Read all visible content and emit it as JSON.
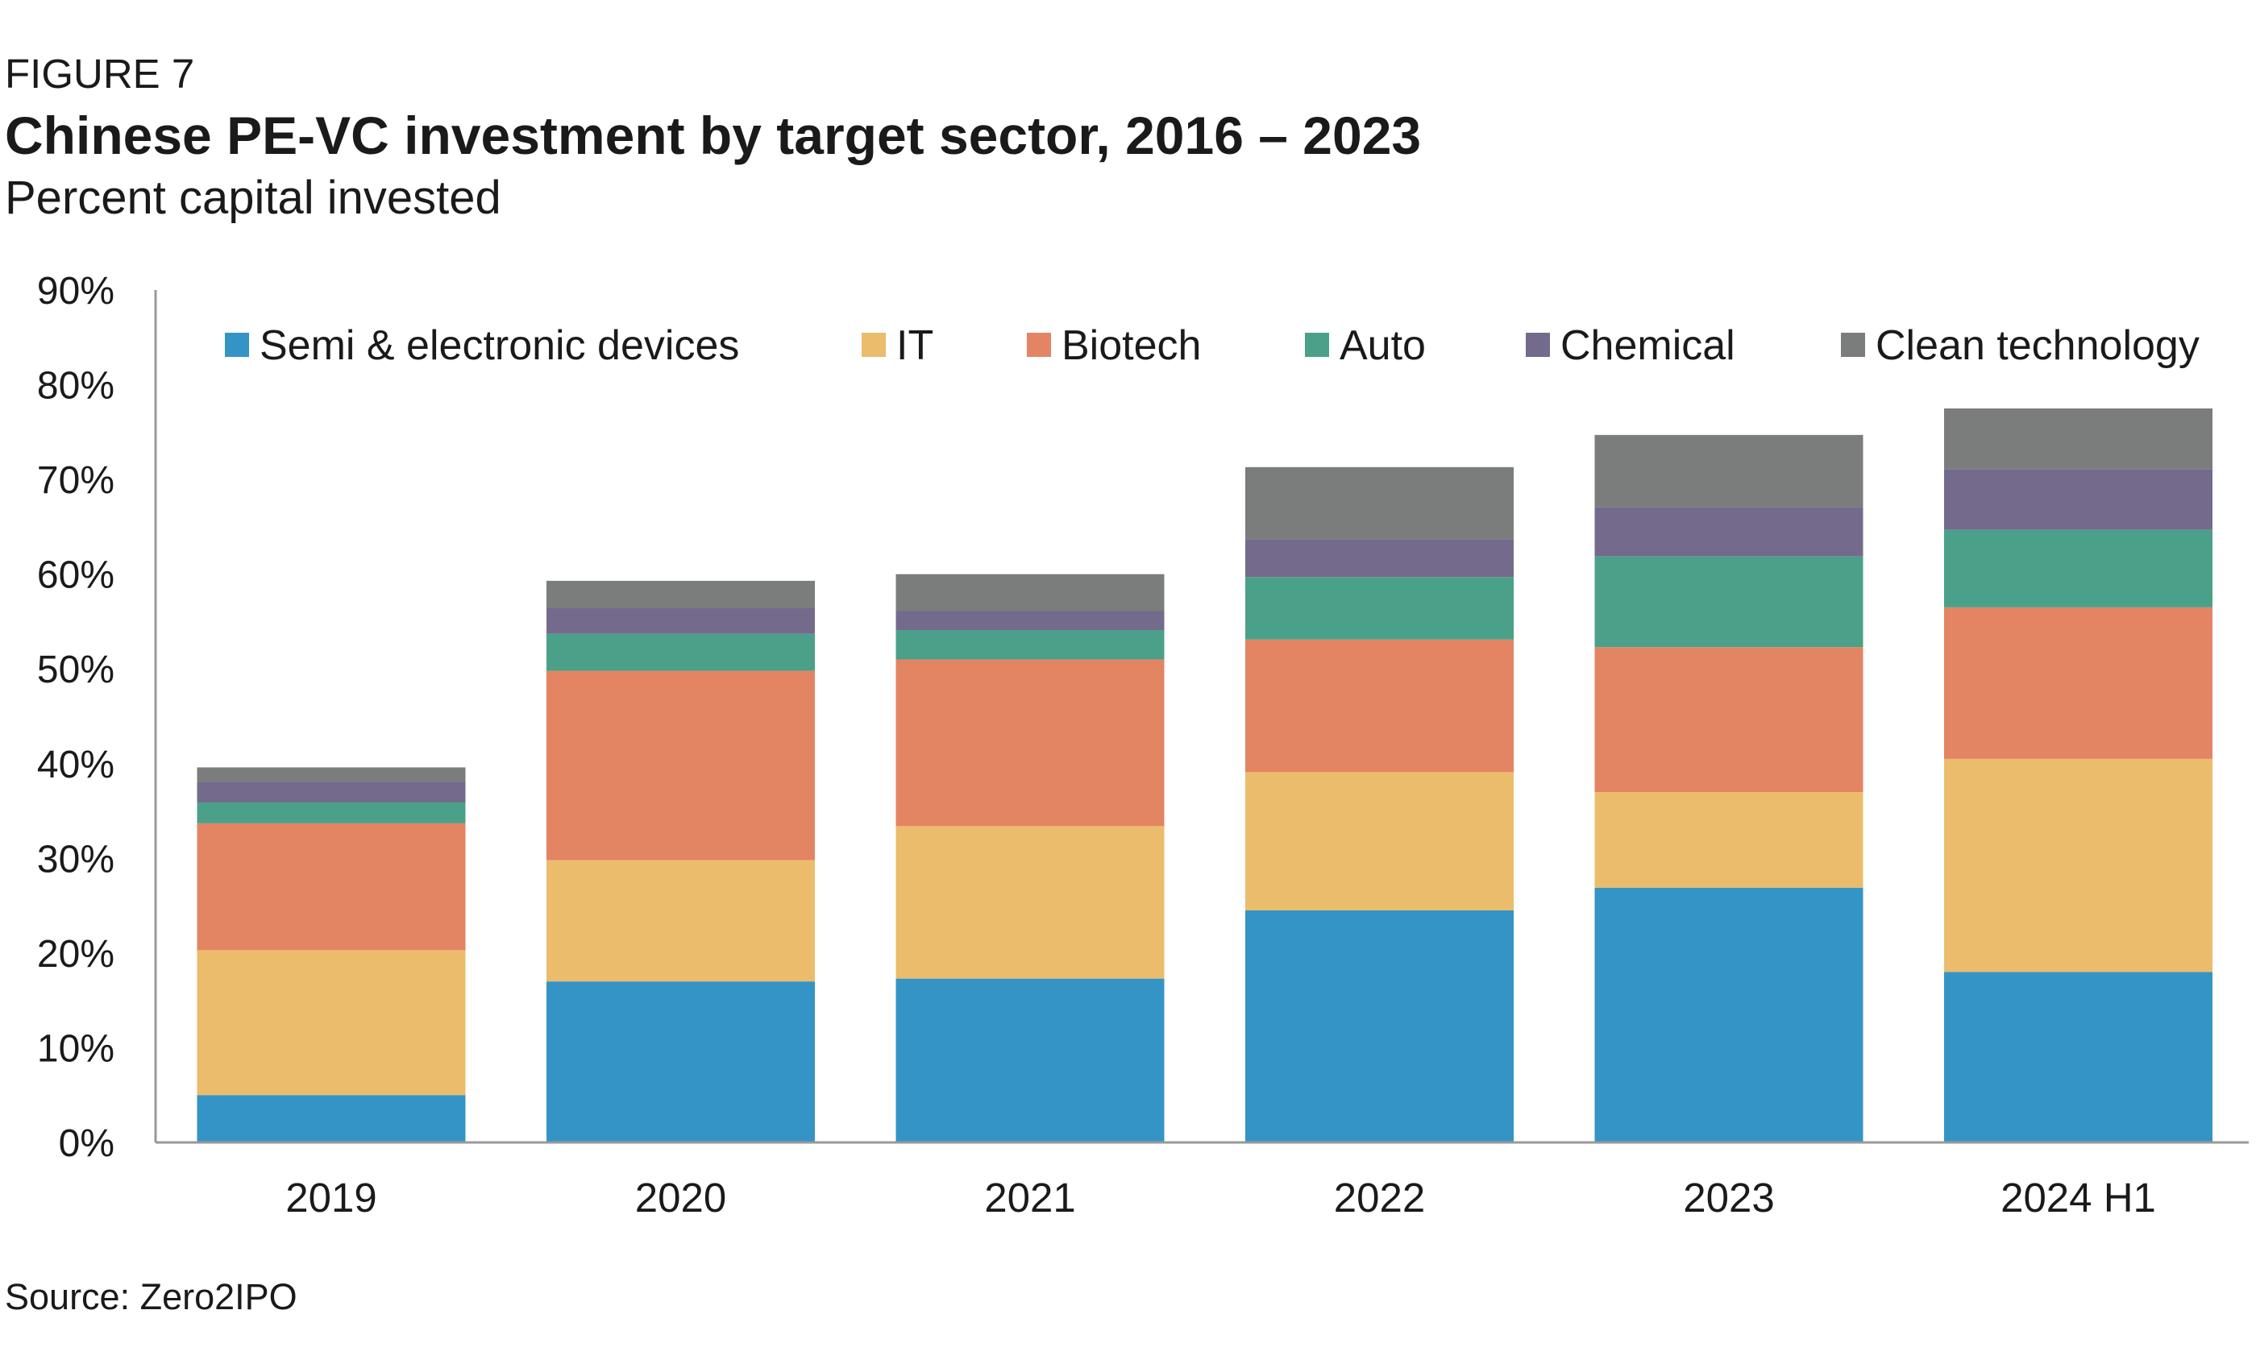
{
  "figure_label": "FIGURE 7",
  "chart_data": {
    "type": "bar",
    "stacked": true,
    "title": "Chinese PE-VC investment by target sector, 2016 – 2023",
    "subtitle": "Percent capital invested",
    "source": "Source: Zero2IPO",
    "xlabel": "",
    "ylabel": "",
    "ylim": [
      0,
      90
    ],
    "yticks": [
      "0%",
      "10%",
      "20%",
      "30%",
      "40%",
      "50%",
      "60%",
      "70%",
      "80%",
      "90%"
    ],
    "grid": false,
    "legend_position": "top",
    "categories": [
      "2019",
      "2020",
      "2021",
      "2022",
      "2023",
      "2024 H1"
    ],
    "series": [
      {
        "name": "Semi & electronic devices",
        "color": "#3494C6",
        "values": [
          5,
          17,
          17.3,
          24.5,
          26.9,
          18
        ]
      },
      {
        "name": "IT",
        "color": "#EBBC6B",
        "values": [
          15.3,
          12.8,
          16.1,
          14.6,
          10.1,
          22.5
        ]
      },
      {
        "name": "Biotech",
        "color": "#E38462",
        "values": [
          13.4,
          20,
          17.6,
          14,
          15.3,
          16
        ]
      },
      {
        "name": "Auto",
        "color": "#4BA089",
        "values": [
          2.2,
          3.9,
          3.1,
          6.6,
          9.6,
          8.2
        ]
      },
      {
        "name": "Chemical",
        "color": "#736A8C",
        "values": [
          2.2,
          2.7,
          2,
          4,
          5.2,
          6.4
        ]
      },
      {
        "name": "Clean technology",
        "color": "#7A7D7C",
        "values": [
          1.5,
          2.9,
          3.9,
          7.6,
          7.6,
          6.4
        ]
      }
    ]
  }
}
